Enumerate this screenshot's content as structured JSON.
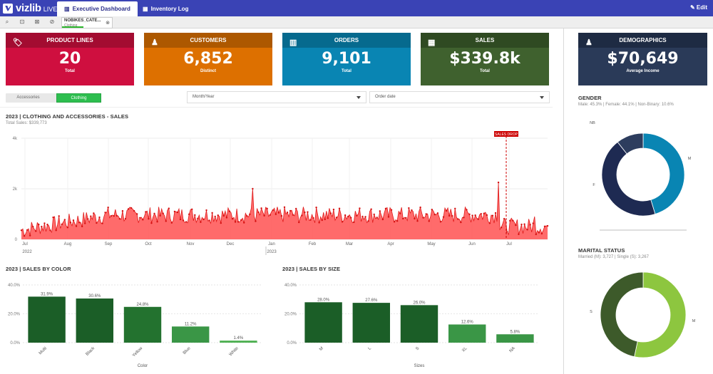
{
  "app": {
    "logo": "vizlib",
    "logo_suffix": "LIVE!",
    "edit_label": "Edit"
  },
  "tabs": [
    {
      "label": "Executive Dashboard",
      "icon": "chart-icon"
    },
    {
      "label": "Inventory Log",
      "icon": "table-icon"
    }
  ],
  "selection": {
    "field": "NOBIKES_CATE...",
    "value": "Clothing"
  },
  "kpis": [
    {
      "title": "PRODUCT LINES",
      "value": "20",
      "sub": "Total",
      "color": "#cf0f3f",
      "head_color": "#a30c31",
      "icon": "tag-icon"
    },
    {
      "title": "CUSTOMERS",
      "value": "6,852",
      "sub": "Distinct",
      "color": "#dd7000",
      "head_color": "#ad5800",
      "icon": "person-icon"
    },
    {
      "title": "ORDERS",
      "value": "9,101",
      "sub": "Total",
      "color": "#0985b3",
      "head_color": "#066a8e",
      "icon": "bar-chart-icon"
    },
    {
      "title": "SALES",
      "value": "$339.8k",
      "sub": "Total",
      "color": "#3f612e",
      "head_color": "#2f4a22",
      "icon": "calculator-icon"
    },
    {
      "title": "DEMOGRAPHICS",
      "value": "$70,649",
      "sub": "Average Income",
      "color": "#2a3a58",
      "head_color": "#1e2b43",
      "icon": "person-icon"
    }
  ],
  "filters": {
    "toggle": [
      "Accessories",
      "Clothing"
    ],
    "month_year": "Month/Year",
    "order_date": "Order date"
  },
  "sales_chart": {
    "title": "2023 | CLOTHING AND ACCESSORIES - SALES",
    "subtitle": "Total Sales: $339,773",
    "y_ticks": [
      "4k",
      "2k",
      "0"
    ],
    "months": [
      "Jul",
      "Aug",
      "Sep",
      "Oct",
      "Nov",
      "Dec",
      "Jan",
      "Feb",
      "Mar",
      "Apr",
      "May",
      "Jun",
      "Jul"
    ],
    "years": [
      "2022",
      "2023"
    ],
    "annotation": "SALES DROP",
    "color": "#f04040"
  },
  "chart_data": [
    {
      "type": "bar",
      "title": "2023 | SALES BY COLOR",
      "xlabel": "Color",
      "categories": [
        "Multi",
        "Black",
        "Yellow",
        "Blue",
        "White"
      ],
      "values": [
        31.9,
        30.6,
        24.8,
        11.2,
        1.4
      ],
      "labels": [
        "31.9%",
        "30.6%",
        "24.8%",
        "11.2%",
        "1.4%"
      ],
      "y_ticks": [
        "40.0%",
        "20.0%",
        "0.0%"
      ],
      "ylim": [
        0,
        40
      ],
      "colors": [
        "#1b5e27",
        "#1b5e27",
        "#23722f",
        "#3a9646",
        "#4caf50"
      ]
    },
    {
      "type": "bar",
      "title": "2023 | SALES BY SIZE",
      "xlabel": "Sizes",
      "categories": [
        "M",
        "L",
        "S",
        "XL",
        "NA"
      ],
      "values": [
        28.0,
        27.6,
        26.0,
        12.6,
        5.8
      ],
      "labels": [
        "28.0%",
        "27.6%",
        "26.0%",
        "12.6%",
        "5.8%"
      ],
      "y_ticks": [
        "40.0%",
        "20.0%",
        "0.0%"
      ],
      "ylim": [
        0,
        40
      ],
      "colors": [
        "#1b5e27",
        "#1b5e27",
        "#1b5e27",
        "#3a9646",
        "#3a9646"
      ]
    },
    {
      "type": "pie",
      "title": "GENDER",
      "subtitle": "Male: 45.3% | Female: 44.1% | Non-Binary: 10.6%",
      "categories": [
        "M",
        "F",
        "NB"
      ],
      "values": [
        45.3,
        44.1,
        10.6
      ],
      "colors": [
        "#0985b3",
        "#1e2a52",
        "#2d3d5e"
      ]
    },
    {
      "type": "pie",
      "title": "MARITAL STATUS",
      "subtitle": "Married (M): 3,727 | Single (S): 3,267",
      "categories": [
        "M",
        "S"
      ],
      "values": [
        3727,
        3267
      ],
      "colors": [
        "#8dc63f",
        "#3d5a2a"
      ]
    }
  ]
}
